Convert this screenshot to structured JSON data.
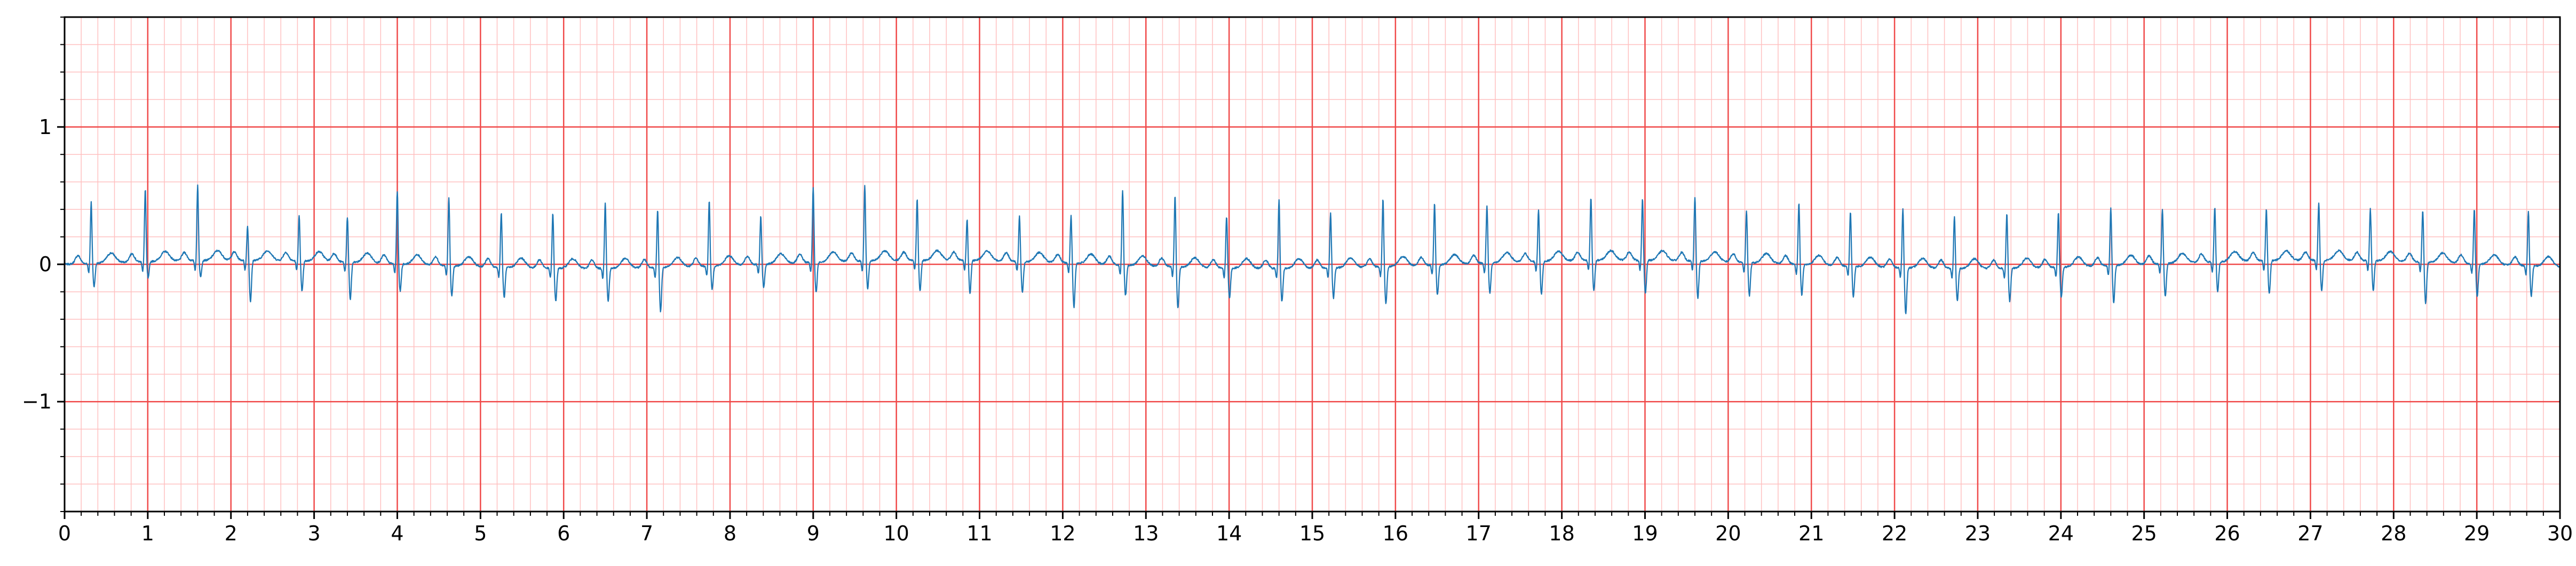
{
  "chart_data": {
    "type": "line",
    "title": "",
    "xlabel": "",
    "ylabel": "",
    "xlim": [
      0,
      30
    ],
    "ylim": [
      -1.8,
      1.8
    ],
    "x_major_ticks": [
      0,
      1,
      2,
      3,
      4,
      5,
      6,
      7,
      8,
      9,
      10,
      11,
      12,
      13,
      14,
      15,
      16,
      17,
      18,
      19,
      20,
      21,
      22,
      23,
      24,
      25,
      26,
      27,
      28,
      29,
      30
    ],
    "x_tick_labels": [
      "0",
      "1",
      "2",
      "3",
      "4",
      "5",
      "6",
      "7",
      "8",
      "9",
      "10",
      "11",
      "12",
      "13",
      "14",
      "15",
      "16",
      "17",
      "18",
      "19",
      "20",
      "21",
      "22",
      "23",
      "24",
      "25",
      "26",
      "27",
      "28",
      "29",
      "30"
    ],
    "y_major_ticks": [
      -1,
      0,
      1
    ],
    "y_tick_labels": [
      "−1",
      "0",
      "1"
    ],
    "x_minor_step": 0.2,
    "y_minor_step": 0.2,
    "grid": "major and minor (ECG paper)",
    "colors": {
      "major_grid": "#f04a4a",
      "minor_grid": "#ffc0c0",
      "trace": "#1f77b4",
      "axes": "#000000"
    },
    "beats": {
      "r_peak_times": [
        0.32,
        0.97,
        1.6,
        2.2,
        2.82,
        3.4,
        4.0,
        4.62,
        5.25,
        5.87,
        6.5,
        7.13,
        7.75,
        8.37,
        9.0,
        9.62,
        10.25,
        10.85,
        11.48,
        12.1,
        12.72,
        13.35,
        13.97,
        14.6,
        15.22,
        15.85,
        16.47,
        17.1,
        17.72,
        18.35,
        18.97,
        19.6,
        20.22,
        20.85,
        21.47,
        22.1,
        22.72,
        23.35,
        23.97,
        24.6,
        25.22,
        25.85,
        26.47,
        27.1,
        27.72,
        28.35,
        28.97,
        29.62
      ],
      "r_peak_values": [
        0.45,
        0.53,
        0.55,
        0.25,
        0.33,
        0.33,
        0.53,
        0.5,
        0.4,
        0.4,
        0.48,
        0.42,
        0.48,
        0.35,
        0.55,
        0.55,
        0.45,
        0.3,
        0.33,
        0.35,
        0.55,
        0.52,
        0.38,
        0.5,
        0.4,
        0.5,
        0.45,
        0.42,
        0.38,
        0.46,
        0.45,
        0.47,
        0.38,
        0.45,
        0.4,
        0.43,
        0.38,
        0.4,
        0.4,
        0.42,
        0.4,
        0.4,
        0.38,
        0.42,
        0.38,
        0.38,
        0.4,
        0.4
      ],
      "s_wave_values": [
        -0.15,
        -0.1,
        -0.1,
        -0.28,
        -0.2,
        -0.25,
        -0.18,
        -0.2,
        -0.2,
        -0.22,
        -0.22,
        -0.3,
        -0.15,
        -0.15,
        -0.2,
        -0.18,
        -0.2,
        -0.22,
        -0.2,
        -0.3,
        -0.2,
        -0.28,
        -0.2,
        -0.22,
        -0.2,
        -0.25,
        -0.2,
        -0.2,
        -0.22,
        -0.2,
        -0.22,
        -0.25,
        -0.22,
        -0.2,
        -0.2,
        -0.32,
        -0.22,
        -0.22,
        -0.2,
        -0.25,
        -0.22,
        -0.2,
        -0.22,
        -0.2,
        -0.2,
        -0.28,
        -0.22,
        -0.2
      ],
      "baseline": 0.0
    }
  }
}
